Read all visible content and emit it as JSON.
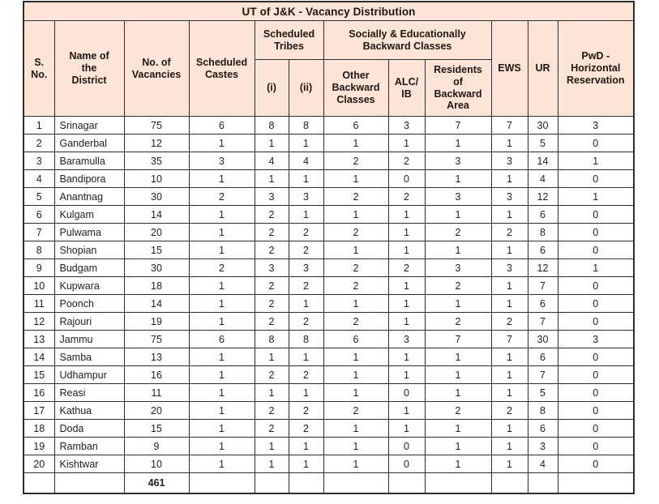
{
  "title": "UT of J&K - Vacancy Distribution",
  "header": {
    "s_no": "S.\nNo.",
    "district": "Name of\nthe\nDistrict",
    "vacancies": "No. of\nVacancies",
    "scheduled_castes": "Scheduled\nCastes",
    "scheduled_tribes_group": "Scheduled\nTribes",
    "st_i": "(i)",
    "st_ii": "(ii)",
    "sebc_group": "Socially & Educationally\nBackward Classes",
    "obc": "Other\nBackward\nClasses",
    "alc_ib": "ALC/\nIB",
    "rba": "Residents\nof\nBackward\nArea",
    "ews": "EWS",
    "ur": "UR",
    "pwd": "PwD -\nHorizontal\nReservation"
  },
  "rows": [
    [
      "1",
      "Srinagar",
      "75",
      "6",
      "8",
      "8",
      "6",
      "3",
      "7",
      "7",
      "30",
      "3"
    ],
    [
      "2",
      "Ganderbal",
      "12",
      "1",
      "1",
      "1",
      "1",
      "1",
      "1",
      "1",
      "5",
      "0"
    ],
    [
      "3",
      "Baramulla",
      "35",
      "3",
      "4",
      "4",
      "2",
      "2",
      "3",
      "3",
      "14",
      "1"
    ],
    [
      "4",
      "Bandipora",
      "10",
      "1",
      "1",
      "1",
      "1",
      "0",
      "1",
      "1",
      "4",
      "0"
    ],
    [
      "5",
      "Anantnag",
      "30",
      "2",
      "3",
      "3",
      "2",
      "2",
      "3",
      "3",
      "12",
      "1"
    ],
    [
      "6",
      "Kulgam",
      "14",
      "1",
      "2",
      "1",
      "1",
      "1",
      "1",
      "1",
      "6",
      "0"
    ],
    [
      "7",
      "Pulwama",
      "20",
      "1",
      "2",
      "2",
      "2",
      "1",
      "2",
      "2",
      "8",
      "0"
    ],
    [
      "8",
      "Shopian",
      "15",
      "1",
      "2",
      "2",
      "1",
      "1",
      "1",
      "1",
      "6",
      "0"
    ],
    [
      "9",
      "Budgam",
      "30",
      "2",
      "3",
      "3",
      "2",
      "2",
      "3",
      "3",
      "12",
      "1"
    ],
    [
      "10",
      "Kupwara",
      "18",
      "1",
      "2",
      "2",
      "2",
      "1",
      "2",
      "1",
      "7",
      "0"
    ],
    [
      "11",
      "Poonch",
      "14",
      "1",
      "2",
      "1",
      "1",
      "1",
      "1",
      "1",
      "6",
      "0"
    ],
    [
      "12",
      "Rajouri",
      "19",
      "1",
      "2",
      "2",
      "2",
      "1",
      "2",
      "2",
      "7",
      "0"
    ],
    [
      "13",
      "Jammu",
      "75",
      "6",
      "8",
      "8",
      "6",
      "3",
      "7",
      "7",
      "30",
      "3"
    ],
    [
      "14",
      "Samba",
      "13",
      "1",
      "1",
      "1",
      "1",
      "1",
      "1",
      "1",
      "6",
      "0"
    ],
    [
      "15",
      "Udhampur",
      "16",
      "1",
      "2",
      "2",
      "1",
      "1",
      "1",
      "1",
      "7",
      "0"
    ],
    [
      "16",
      "Reasi",
      "11",
      "1",
      "1",
      "1",
      "1",
      "0",
      "1",
      "1",
      "5",
      "0"
    ],
    [
      "17",
      "Kathua",
      "20",
      "1",
      "2",
      "2",
      "2",
      "1",
      "2",
      "2",
      "8",
      "0"
    ],
    [
      "18",
      "Doda",
      "15",
      "1",
      "2",
      "2",
      "1",
      "1",
      "1",
      "1",
      "6",
      "0"
    ],
    [
      "19",
      "Ramban",
      "9",
      "1",
      "1",
      "1",
      "1",
      "0",
      "1",
      "1",
      "3",
      "0"
    ],
    [
      "20",
      "Kishtwar",
      "10",
      "1",
      "1",
      "1",
      "1",
      "0",
      "1",
      "1",
      "4",
      "0"
    ]
  ],
  "total_row": [
    "",
    "",
    "461",
    "",
    "",
    "",
    "",
    "",
    "",
    "",
    "",
    ""
  ],
  "colors": {
    "header_bg": "#fce5d6",
    "border": "#2d2d2d",
    "text": "#1f1f1f"
  }
}
